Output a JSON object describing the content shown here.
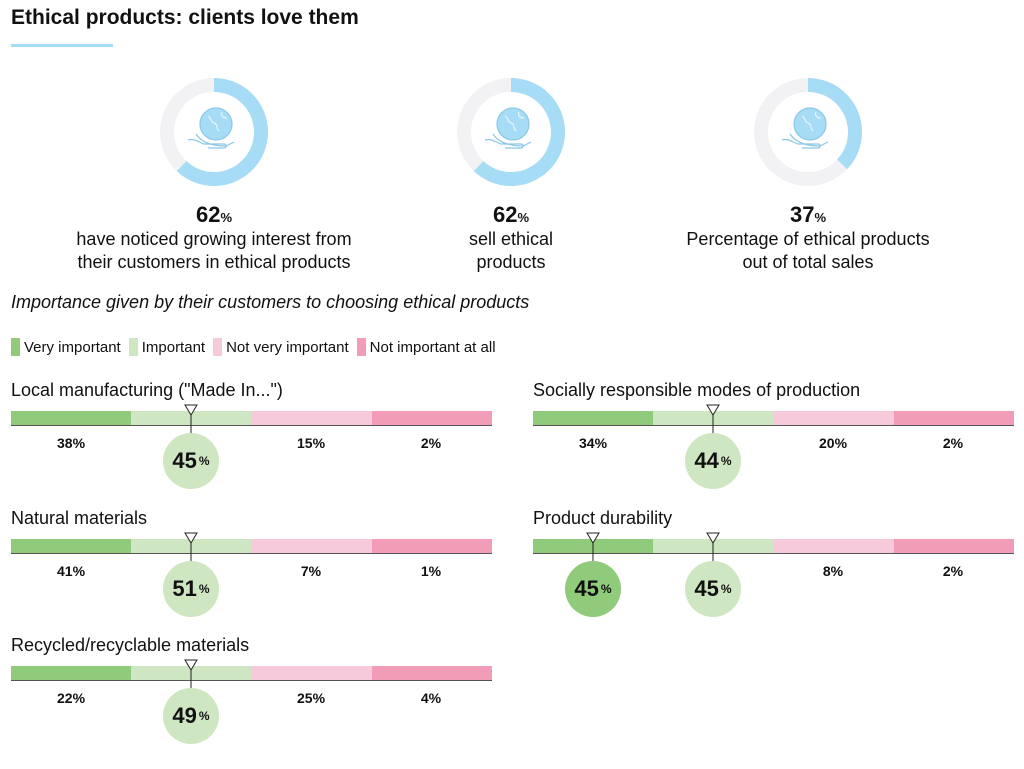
{
  "title": "Ethical products: clients love them",
  "stats": [
    {
      "value": "62",
      "unit": "%",
      "fraction": 0.62,
      "desc1": "have noticed growing interest from",
      "desc2": "their customers in ethical products"
    },
    {
      "value": "62",
      "unit": "%",
      "fraction": 0.62,
      "desc1": "sell ethical",
      "desc2": "products"
    },
    {
      "value": "37",
      "unit": "%",
      "fraction": 0.37,
      "desc1": "Percentage of ethical products",
      "desc2": "out of total sales"
    }
  ],
  "subtitle": "Importance given by their customers to choosing ethical products",
  "colors": {
    "very": "#8fcb7a",
    "important": "#cfe6c2",
    "notvery": "#f7cadb",
    "notatall": "#f19db8",
    "donut": "#a6dcf5",
    "donut_bg": "#f2f2f4"
  },
  "chart_data": {
    "type": "bar",
    "legend": [
      "Very important",
      "Important",
      "Not very important",
      "Not important at all"
    ],
    "legend_placement": "top-left",
    "items": [
      {
        "name": "Local manufacturing (\"Made In...\")",
        "values": [
          38,
          45,
          15,
          2
        ],
        "highlight": [
          1
        ]
      },
      {
        "name": "Socially responsible modes of production",
        "values": [
          34,
          44,
          20,
          2
        ],
        "highlight": [
          1
        ]
      },
      {
        "name": "Natural materials",
        "values": [
          41,
          51,
          7,
          1
        ],
        "highlight": [
          1
        ]
      },
      {
        "name": "Product durability",
        "values": [
          45,
          45,
          8,
          2
        ],
        "highlight": [
          0,
          1
        ]
      },
      {
        "name": "Recycled/recyclable materials",
        "values": [
          22,
          49,
          25,
          4
        ],
        "highlight": [
          1
        ]
      }
    ]
  }
}
